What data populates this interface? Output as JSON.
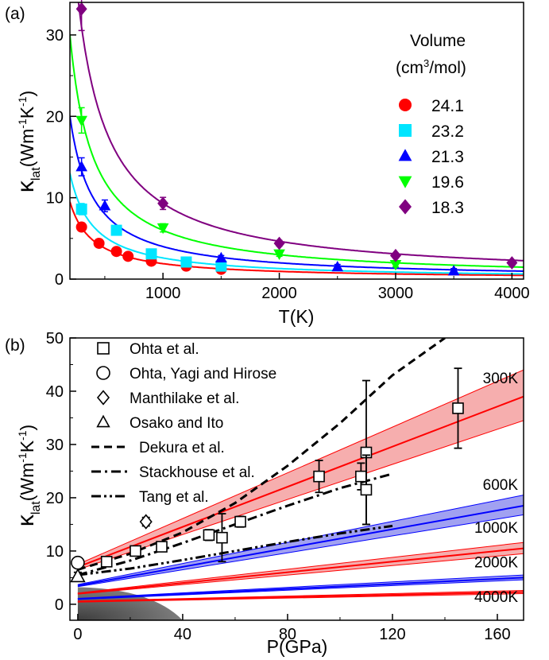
{
  "chart_data": [
    {
      "panel": "(a)",
      "type": "scatter",
      "xlabel": "T(K)",
      "ylabel_main": "κ",
      "ylabel_sub": "lat",
      "ylabel_tail": "(Wm",
      "ylabel_sup1": "-1",
      "ylabel_mid": "K",
      "ylabel_sup2": "-1",
      "ylabel_end": ")",
      "xlim": [
        200,
        4100
      ],
      "ylim": [
        0,
        34
      ],
      "xticks": [
        1000,
        2000,
        3000,
        4000
      ],
      "yticks": [
        0,
        10,
        20,
        30
      ],
      "legend_title_1": "Volume",
      "legend_title_2a": "(cm",
      "legend_title_2sup": "3",
      "legend_title_2b": "/mol)",
      "legend_position": "top-right",
      "series": [
        {
          "name": "24.1",
          "color": "#ff0000",
          "marker": "circle",
          "coef": 1900,
          "points": [
            [
              300,
              6.4
            ],
            [
              450,
              4.4
            ],
            [
              600,
              3.4
            ],
            [
              700,
              2.8
            ],
            [
              900,
              2.2
            ],
            [
              1200,
              1.6
            ],
            [
              1500,
              1.2
            ]
          ]
        },
        {
          "name": "23.2",
          "color": "#00e5ff",
          "marker": "square",
          "coef": 2600,
          "points": [
            [
              300,
              8.6
            ],
            [
              600,
              6.0
            ],
            [
              900,
              3.1
            ],
            [
              1200,
              2.1
            ],
            [
              1500,
              1.6
            ]
          ]
        },
        {
          "name": "21.3",
          "color": "#0000ff",
          "marker": "triangle-up",
          "coef": 4000,
          "points": [
            [
              300,
              13.8
            ],
            [
              500,
              9.0
            ],
            [
              1500,
              2.6
            ],
            [
              2500,
              1.5
            ],
            [
              3500,
              1.0
            ]
          ]
        },
        {
          "name": "19.6",
          "color": "#00ff00",
          "marker": "triangle-down",
          "coef": 6000,
          "points": [
            [
              300,
              19.5
            ],
            [
              1000,
              6.3
            ],
            [
              2000,
              3.1
            ],
            [
              3000,
              1.8
            ]
          ]
        },
        {
          "name": "18.3",
          "color": "#800080",
          "marker": "diamond",
          "coef": 9300,
          "points": [
            [
              300,
              33.2
            ],
            [
              1000,
              9.3
            ],
            [
              2000,
              4.4
            ],
            [
              3000,
              2.9
            ],
            [
              4000,
              2.0
            ]
          ]
        }
      ]
    },
    {
      "panel": "(b)",
      "type": "line",
      "xlabel": "P(GPa)",
      "ylabel_main": "κ",
      "ylabel_sub": "lat",
      "ylabel_tail": "(Wm",
      "ylabel_sup1": "-1",
      "ylabel_mid": "K",
      "ylabel_sup2": "-1",
      "ylabel_end": ")",
      "xlim": [
        -3,
        170
      ],
      "ylim": [
        -3,
        50
      ],
      "xticks": [
        0,
        40,
        80,
        120,
        160
      ],
      "yticks": [
        0,
        10,
        20,
        30,
        40,
        50
      ],
      "bands": [
        {
          "name": "300K",
          "color": "#ff0000",
          "fill": "#f4a0a0",
          "center": [
            [
              0,
              7
            ],
            [
              170,
              39
            ]
          ],
          "lower": [
            [
              0,
              6.5
            ],
            [
              170,
              34.5
            ]
          ],
          "upper": [
            [
              0,
              7.5
            ],
            [
              170,
              44
            ]
          ]
        },
        {
          "name": "600K",
          "color": "#0000ff",
          "fill": "#9090ee",
          "center": [
            [
              0,
              3.5
            ],
            [
              170,
              18.5
            ]
          ],
          "lower": [
            [
              0,
              3.3
            ],
            [
              170,
              16.8
            ]
          ],
          "upper": [
            [
              0,
              3.7
            ],
            [
              170,
              20.5
            ]
          ]
        },
        {
          "name": "1000K",
          "color": "#ff0000",
          "fill": "#f4a0a0",
          "center": [
            [
              0,
              2.0
            ],
            [
              170,
              10.5
            ]
          ],
          "lower": [
            [
              0,
              1.9
            ],
            [
              170,
              9.5
            ]
          ],
          "upper": [
            [
              0,
              2.1
            ],
            [
              170,
              11.6
            ]
          ]
        },
        {
          "name": "2000K",
          "color": "#0000ff",
          "fill": "#9090ee",
          "center": [
            [
              0,
              1.0
            ],
            [
              170,
              5.0
            ]
          ],
          "lower": [
            [
              0,
              0.9
            ],
            [
              170,
              4.6
            ]
          ],
          "upper": [
            [
              0,
              1.1
            ],
            [
              170,
              5.5
            ]
          ]
        },
        {
          "name": "4000K",
          "color": "#ff0000",
          "fill": "#f4a0a0",
          "center": [
            [
              0,
              0.5
            ],
            [
              170,
              2.3
            ]
          ],
          "lower": [
            [
              0,
              0.4
            ],
            [
              170,
              2.0
            ]
          ],
          "upper": [
            [
              0,
              0.6
            ],
            [
              170,
              2.6
            ]
          ]
        }
      ],
      "dekura": {
        "name": "Dekura et al.",
        "points": [
          [
            0,
            6.5
          ],
          [
            20,
            9.5
          ],
          [
            40,
            13.5
          ],
          [
            60,
            19
          ],
          [
            80,
            26
          ],
          [
            100,
            34
          ],
          [
            120,
            43
          ],
          [
            140,
            50
          ]
        ]
      },
      "stackhouse": {
        "name": "Stackhouse et al.",
        "points": [
          [
            0,
            5.5
          ],
          [
            20,
            8.2
          ],
          [
            40,
            11.5
          ],
          [
            60,
            15
          ],
          [
            80,
            18.5
          ],
          [
            100,
            21.8
          ],
          [
            120,
            24.5
          ]
        ]
      },
      "tang": {
        "name": "Tang et al.",
        "points": [
          [
            0,
            5.5
          ],
          [
            20,
            6.7
          ],
          [
            40,
            8.3
          ],
          [
            60,
            10
          ],
          [
            80,
            11.7
          ],
          [
            100,
            13.3
          ],
          [
            120,
            14.7
          ]
        ]
      },
      "ohta_et_al": {
        "name": "Ohta et al.",
        "points": [
          [
            11,
            8.0,
            0.6
          ],
          [
            22,
            10.0,
            0.6
          ],
          [
            32,
            10.8,
            0.6
          ],
          [
            50,
            13.0,
            1.0
          ],
          [
            55,
            12.5,
            4.5
          ],
          [
            62,
            15.5,
            1.0
          ],
          [
            92,
            24.0,
            3.0
          ],
          [
            108,
            24.0,
            2.5
          ],
          [
            110,
            28.5,
            13.5
          ],
          [
            110,
            21.5,
            6.5
          ],
          [
            145,
            36.8,
            7.5
          ]
        ]
      },
      "ohta_yagi_hirose": {
        "name": "Ohta, Yagi and Hirose",
        "points": [
          [
            0,
            7.8,
            0.8
          ]
        ]
      },
      "manthilake": {
        "name": "Manthilake et al.",
        "points": [
          [
            26,
            15.5,
            0.8
          ]
        ]
      },
      "osako_ito": {
        "name": "Osako and Ito",
        "points": [
          [
            0,
            5.2,
            0.8
          ]
        ]
      },
      "legend_position": "top-left"
    }
  ]
}
